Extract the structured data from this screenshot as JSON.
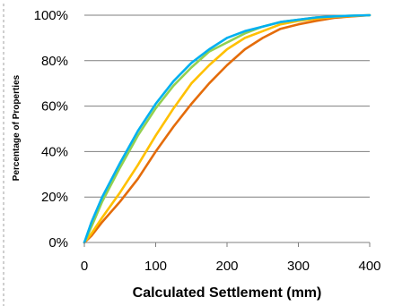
{
  "chart_data": {
    "type": "line",
    "title": "",
    "xlabel": "Calculated Settlement (mm)",
    "ylabel": "Percentage of Properties",
    "xlim": [
      0,
      400
    ],
    "ylim": [
      0,
      100
    ],
    "x_ticks": [
      "0",
      "100",
      "200",
      "300",
      "400"
    ],
    "y_ticks": [
      "0%",
      "20%",
      "40%",
      "60%",
      "80%",
      "100%"
    ],
    "grid": "horizontal",
    "legend": "none",
    "colors": [
      "#00b0f0",
      "#92d050",
      "#ffc000",
      "#e46c0a"
    ],
    "series": [
      {
        "x": [
          0,
          10,
          25,
          50,
          75,
          100,
          125,
          150,
          175,
          200,
          225,
          250,
          275,
          300,
          325,
          350,
          375,
          400
        ],
        "values": [
          0,
          9,
          20,
          35,
          49,
          61,
          71,
          79,
          85,
          90,
          93,
          95,
          97,
          98,
          99,
          99.5,
          99.8,
          100
        ]
      },
      {
        "x": [
          0,
          10,
          25,
          50,
          75,
          100,
          125,
          150,
          175,
          200,
          225,
          250,
          275,
          300,
          325,
          350,
          375,
          400
        ],
        "values": [
          0,
          7,
          18,
          33,
          47,
          59,
          69,
          77,
          84,
          88,
          92,
          95,
          97,
          98,
          99,
          99.5,
          99.8,
          100
        ]
      },
      {
        "x": [
          0,
          10,
          25,
          50,
          75,
          100,
          125,
          150,
          175,
          200,
          225,
          250,
          275,
          300,
          325,
          350,
          375,
          400
        ],
        "values": [
          0,
          4,
          11,
          22,
          34,
          47,
          59,
          70,
          78,
          85,
          90,
          93,
          96,
          97.5,
          98.5,
          99.3,
          99.7,
          100
        ]
      },
      {
        "x": [
          0,
          10,
          25,
          50,
          75,
          100,
          125,
          150,
          175,
          200,
          225,
          250,
          275,
          300,
          325,
          350,
          375,
          400
        ],
        "values": [
          0,
          3,
          9,
          18,
          28,
          40,
          51,
          61,
          70,
          78,
          85,
          90,
          94,
          96,
          97.5,
          98.8,
          99.5,
          100
        ]
      }
    ]
  }
}
